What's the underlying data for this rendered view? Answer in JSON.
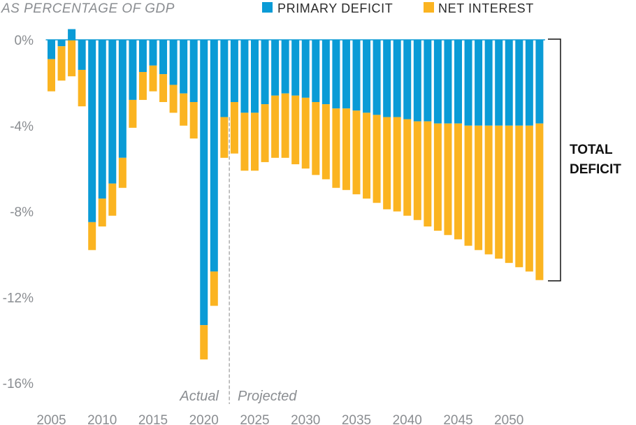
{
  "colors": {
    "primary": "#0a9bd6",
    "interest": "#fbb421",
    "zero_line": "#0a9bd6",
    "axis_text": "#8a8d91",
    "divider": "#9a9a9a"
  },
  "chart_data": {
    "type": "bar",
    "stacked": true,
    "subtitle": "AS PERCENTAGE OF GDP",
    "legend": {
      "position": "top-right",
      "items": [
        {
          "key": "primary",
          "label": "PRIMARY DEFICIT"
        },
        {
          "key": "interest",
          "label": "NET INTEREST"
        }
      ]
    },
    "ylim": [
      -16,
      0
    ],
    "y_ticks": [
      0,
      -4,
      -8,
      -12,
      -16
    ],
    "y_tick_labels": [
      "0%",
      "-4%",
      "-8%",
      "-12%",
      "-16%"
    ],
    "x_ticks": [
      2005,
      2010,
      2015,
      2020,
      2025,
      2030,
      2035,
      2040,
      2045,
      2050
    ],
    "x_tick_labels": [
      "2005",
      "2010",
      "2015",
      "2020",
      "2025",
      "2030",
      "2035",
      "2040",
      "2045",
      "2050"
    ],
    "years": [
      2005,
      2006,
      2007,
      2008,
      2009,
      2010,
      2011,
      2012,
      2013,
      2014,
      2015,
      2016,
      2017,
      2018,
      2019,
      2020,
      2021,
      2022,
      2023,
      2024,
      2025,
      2026,
      2027,
      2028,
      2029,
      2030,
      2031,
      2032,
      2033,
      2034,
      2035,
      2036,
      2037,
      2038,
      2039,
      2040,
      2041,
      2042,
      2043,
      2044,
      2045,
      2046,
      2047,
      2048,
      2049,
      2050,
      2051,
      2052,
      2053
    ],
    "series": [
      {
        "name": "PRIMARY DEFICIT",
        "key": "primary",
        "values": [
          -0.9,
          -0.3,
          0.5,
          -1.4,
          -8.5,
          -7.4,
          -6.7,
          -5.5,
          -2.8,
          -1.5,
          -1.2,
          -1.6,
          -2.1,
          -2.5,
          -2.9,
          -13.3,
          -10.8,
          -3.6,
          -2.9,
          -3.4,
          -3.4,
          -3.0,
          -2.6,
          -2.5,
          -2.6,
          -2.7,
          -2.9,
          -3.0,
          -3.2,
          -3.2,
          -3.3,
          -3.4,
          -3.5,
          -3.6,
          -3.6,
          -3.7,
          -3.8,
          -3.8,
          -3.9,
          -3.9,
          -3.9,
          -4.0,
          -4.0,
          -4.0,
          -4.0,
          -4.0,
          -4.0,
          -4.0,
          -3.9
        ]
      },
      {
        "name": "NET INTEREST",
        "key": "interest",
        "values": [
          -1.5,
          -1.6,
          -1.7,
          -1.7,
          -1.3,
          -1.3,
          -1.5,
          -1.4,
          -1.3,
          -1.3,
          -1.2,
          -1.3,
          -1.3,
          -1.5,
          -1.7,
          -1.6,
          -1.6,
          -1.9,
          -2.4,
          -2.7,
          -2.7,
          -2.7,
          -2.9,
          -3.0,
          -3.2,
          -3.3,
          -3.4,
          -3.5,
          -3.7,
          -3.8,
          -3.9,
          -4.0,
          -4.1,
          -4.3,
          -4.4,
          -4.5,
          -4.6,
          -4.9,
          -5.0,
          -5.2,
          -5.4,
          -5.6,
          -5.8,
          -6.0,
          -6.2,
          -6.4,
          -6.6,
          -6.8,
          -7.3
        ]
      }
    ],
    "period_labels": {
      "actual": "Actual",
      "projected": "Projected"
    },
    "annotation": {
      "line1": "TOTAL",
      "line2": "DEFICIT"
    }
  }
}
